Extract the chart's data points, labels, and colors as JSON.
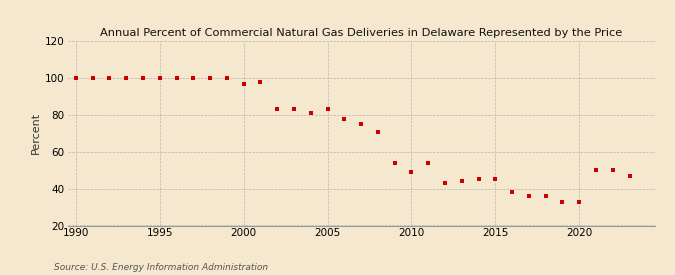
{
  "title": "Annual Percent of Commercial Natural Gas Deliveries in Delaware Represented by the Price",
  "ylabel": "Percent",
  "source": "Source: U.S. Energy Information Administration",
  "background_color": "#f5e8ce",
  "plot_background": "#f5e8ce",
  "marker_color": "#cc0000",
  "grid_color": "#b0b0b0",
  "xlim": [
    1989.5,
    2024.5
  ],
  "ylim": [
    20,
    120
  ],
  "yticks": [
    20,
    40,
    60,
    80,
    100,
    120
  ],
  "xticks": [
    1990,
    1995,
    2000,
    2005,
    2010,
    2015,
    2020
  ],
  "years": [
    1990,
    1991,
    1992,
    1993,
    1994,
    1995,
    1996,
    1997,
    1998,
    1999,
    2000,
    2001,
    2002,
    2003,
    2004,
    2005,
    2006,
    2007,
    2008,
    2009,
    2010,
    2011,
    2012,
    2013,
    2014,
    2015,
    2016,
    2017,
    2018,
    2019,
    2020,
    2021,
    2022,
    2023
  ],
  "values": [
    100,
    100,
    100,
    100,
    100,
    100,
    100,
    100,
    100,
    100,
    97,
    98,
    83,
    83,
    81,
    83,
    78,
    75,
    71,
    54,
    49,
    54,
    43,
    44,
    45,
    45,
    38,
    36,
    36,
    33,
    33,
    50,
    50,
    47
  ]
}
